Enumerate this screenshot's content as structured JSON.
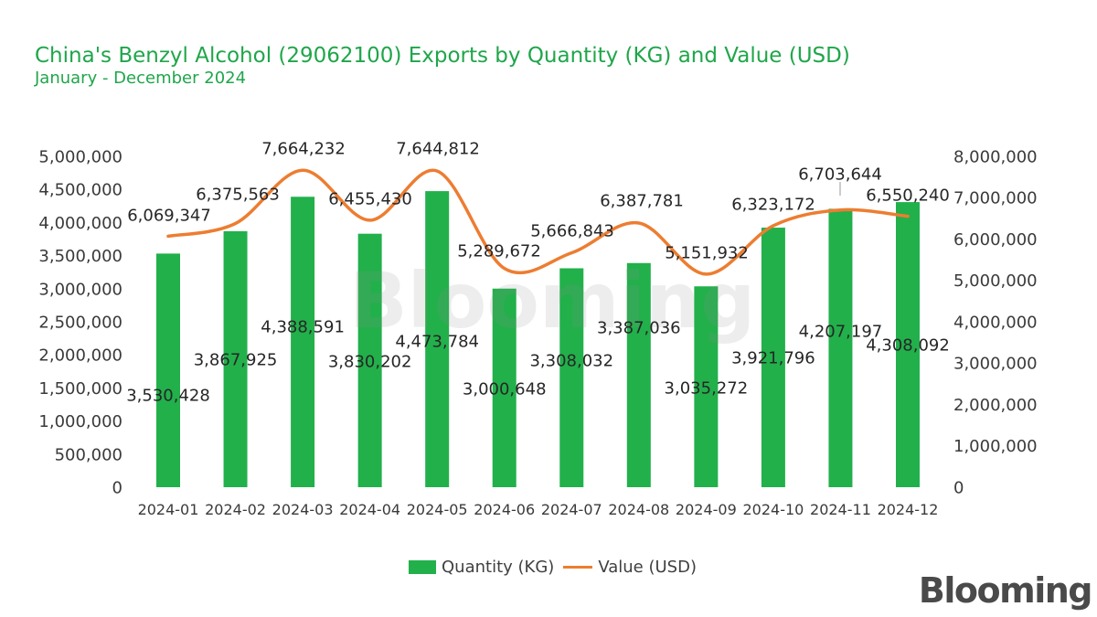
{
  "chart_data": {
    "type": "bar",
    "title": "China's Benzyl Alcohol (29062100) Exports by Quantity (KG) and Value (USD)",
    "subtitle": "January - December 2024",
    "categories": [
      "2024-01",
      "2024-02",
      "2024-03",
      "2024-04",
      "2024-05",
      "2024-06",
      "2024-07",
      "2024-08",
      "2024-09",
      "2024-10",
      "2024-11",
      "2024-12"
    ],
    "series": [
      {
        "name": "Quantity (KG)",
        "type": "bar",
        "axis": "left",
        "values": [
          3530428,
          3867925,
          4388591,
          3830202,
          4473784,
          3000648,
          3308032,
          3387036,
          3035272,
          3921796,
          4207197,
          4308092
        ],
        "data_labels": [
          "3,530,428",
          "3,867,925",
          "4,388,591",
          "3,830,202",
          "4,473,784",
          "3,000,648",
          "3,308,032",
          "3,387,036",
          "3,035,272",
          "3,921,796",
          "4,207,197",
          "4,308,092"
        ]
      },
      {
        "name": "Value (USD)",
        "type": "line",
        "smooth": true,
        "axis": "right",
        "values": [
          6069347,
          6375563,
          7664232,
          6455430,
          7644812,
          5289672,
          5666843,
          6387781,
          5151932,
          6323172,
          6703644,
          6550240
        ],
        "data_labels": [
          "6,069,347",
          "6,375,563",
          "7,664,232",
          "6,455,430",
          "7,644,812",
          "5,289,672",
          "5,666,843",
          "6,387,781",
          "5,151,932",
          "6,323,172",
          "6,703,644",
          "6,550,240"
        ]
      }
    ],
    "y_left": {
      "range": [
        0,
        5000000
      ],
      "step": 500000,
      "tick_labels": [
        "0",
        "500,000",
        "1,000,000",
        "1,500,000",
        "2,000,000",
        "2,500,000",
        "3,000,000",
        "3,500,000",
        "4,000,000",
        "4,500,000",
        "5,000,000"
      ]
    },
    "y_right": {
      "range": [
        0,
        8000000
      ],
      "step": 1000000,
      "tick_labels": [
        "0",
        "1,000,000",
        "2,000,000",
        "3,000,000",
        "4,000,000",
        "5,000,000",
        "6,000,000",
        "7,000,000",
        "8,000,000"
      ]
    },
    "grid": false,
    "legend_position": "bottom"
  },
  "watermark": "Blooming",
  "logo": {
    "text": "Blooming"
  },
  "colors": {
    "title": "#1fa64a",
    "bar": "#22b04b",
    "line": "#ed7d31",
    "axis_text": "#3a3a3a",
    "label_text": "#262626",
    "leader": "#9a9a9a",
    "watermark": "#8f8f8f",
    "logo": "#4a4a4a"
  }
}
